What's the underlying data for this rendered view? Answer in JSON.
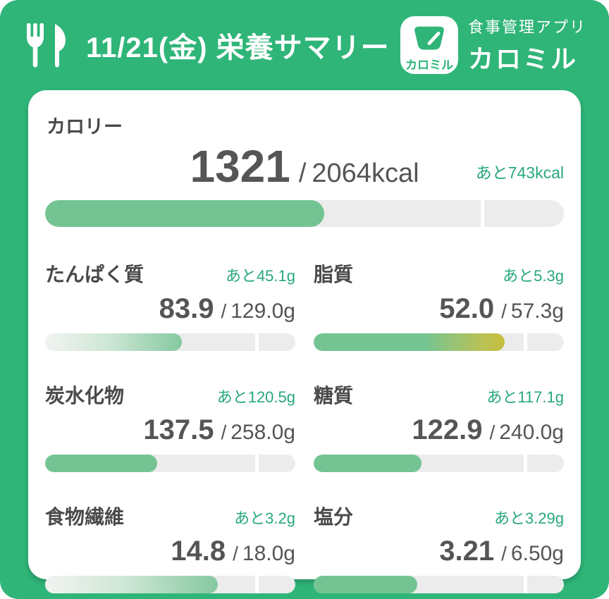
{
  "header": {
    "title": "11/21(金) 栄養サマリー",
    "logo_text": "カロミル",
    "app_tagline": "食事管理アプリ",
    "app_name": "カロミル"
  },
  "calorie": {
    "label": "カロリー",
    "value": "1321",
    "separator": "/",
    "goal_display": "2064kcal",
    "remaining": "あと743kcal",
    "value_num": 1321,
    "goal_num": 2064,
    "fill_style": "solid"
  },
  "nutrients": [
    {
      "label": "たんぱく質",
      "remaining": "あと45.1g",
      "value": "83.9",
      "separator": "/",
      "goal_display": "129.0g",
      "value_num": 83.9,
      "goal_num": 129.0,
      "fill_style": "fade"
    },
    {
      "label": "脂質",
      "remaining": "あと5.3g",
      "value": "52.0",
      "separator": "/",
      "goal_display": "57.3g",
      "value_num": 52.0,
      "goal_num": 57.3,
      "fill_style": "warn"
    },
    {
      "label": "炭水化物",
      "remaining": "あと120.5g",
      "value": "137.5",
      "separator": "/",
      "goal_display": "258.0g",
      "value_num": 137.5,
      "goal_num": 258.0,
      "fill_style": "solid"
    },
    {
      "label": "糖質",
      "remaining": "あと117.1g",
      "value": "122.9",
      "separator": "/",
      "goal_display": "240.0g",
      "value_num": 122.9,
      "goal_num": 240.0,
      "fill_style": "solid"
    },
    {
      "label": "食物繊維",
      "remaining": "あと3.2g",
      "value": "14.8",
      "separator": "/",
      "goal_display": "18.0g",
      "value_num": 14.8,
      "goal_num": 18.0,
      "fill_style": "fade"
    },
    {
      "label": "塩分",
      "remaining": "あと3.29g",
      "value": "3.21",
      "separator": "/",
      "goal_display": "6.50g",
      "value_num": 3.21,
      "goal_num": 6.5,
      "fill_style": "solid"
    }
  ],
  "colors": {
    "background_green": "#2fb578",
    "bar_fill_green": "#74c493",
    "bar_warn_yellow": "#c6bf3d",
    "remaining_text_green": "#28a87b",
    "value_text_gray": "#555555",
    "track_gray": "#ececec"
  },
  "icons": {
    "utensils": "fork-and-knife-icon",
    "logo": "kitchen-scale-icon"
  }
}
